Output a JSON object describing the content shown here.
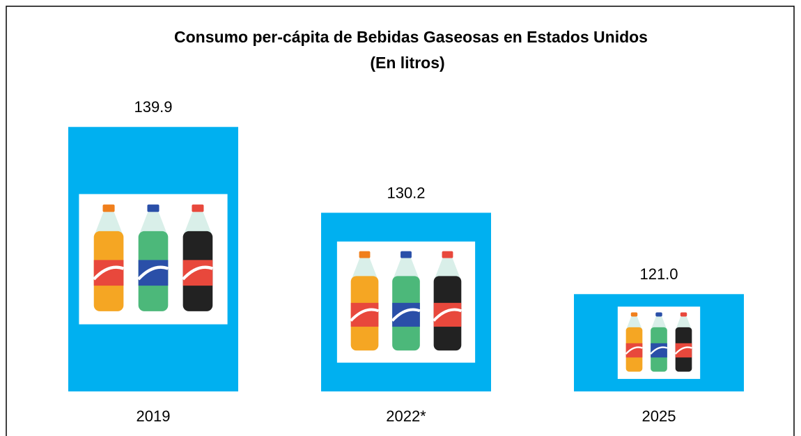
{
  "chart_data": {
    "type": "bar",
    "title": "Consumo per-cápita de Bebidas Gaseosas en Estados Unidos",
    "subtitle": "(En litros)",
    "categories": [
      "2019",
      "2022*",
      "2025"
    ],
    "values": [
      139.9,
      130.2,
      121.0
    ],
    "value_labels": [
      "139.9",
      "130.2",
      "121.0"
    ],
    "color": "#00b0f0",
    "ylim": [
      110,
      140
    ]
  }
}
